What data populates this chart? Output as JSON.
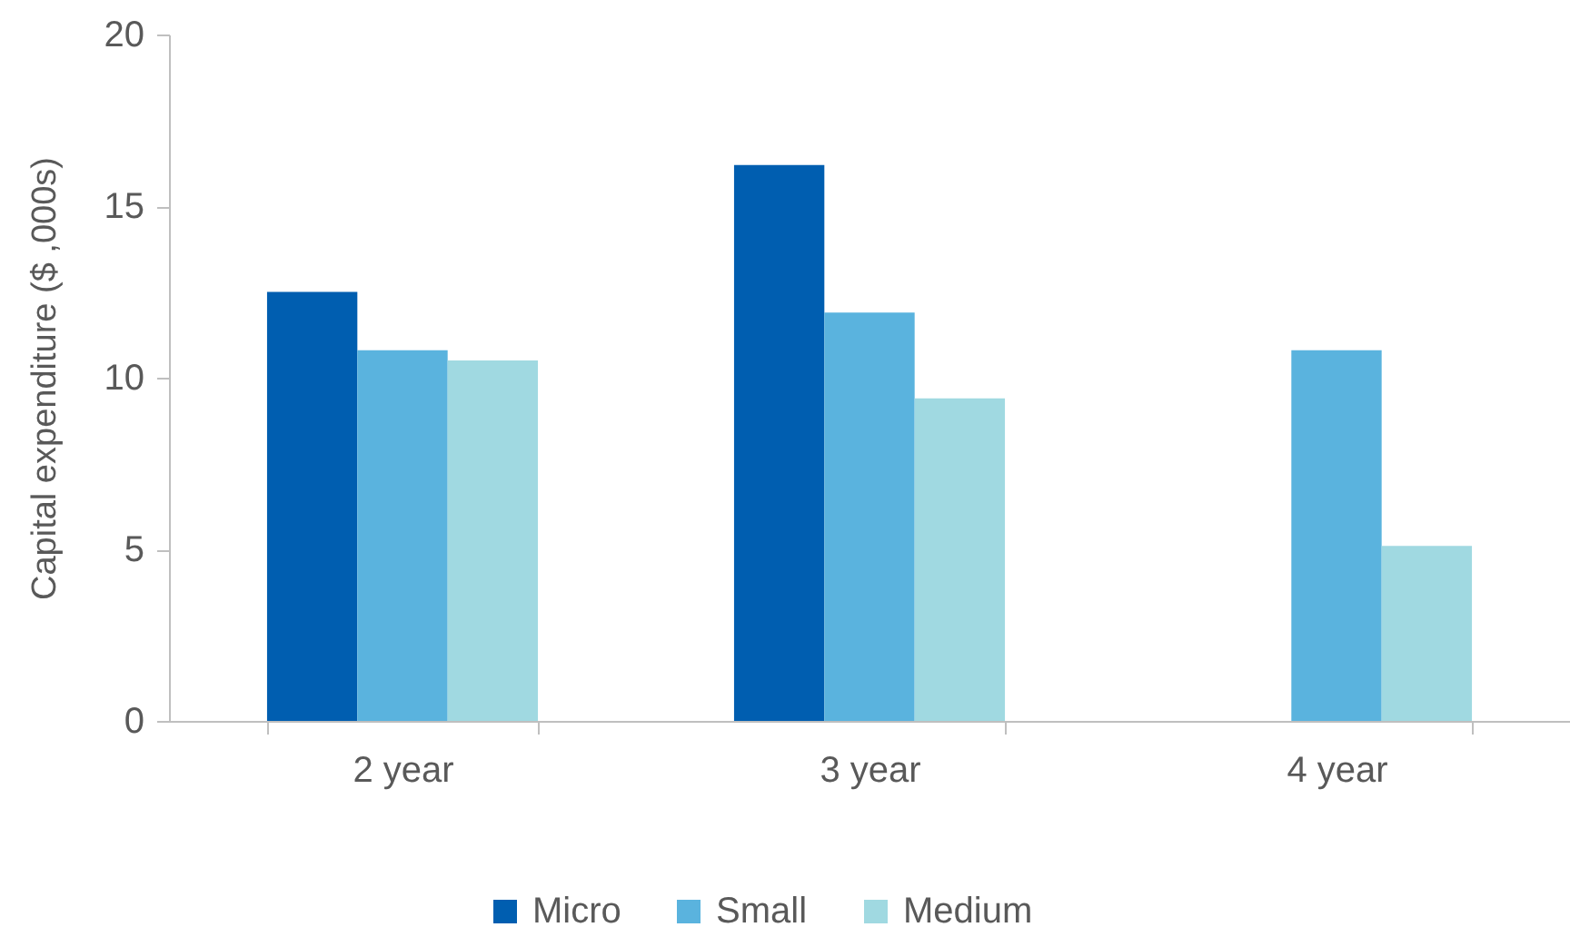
{
  "chart_data": {
    "type": "bar",
    "ylabel": "Capital expenditure ($ ,000s)",
    "categories": [
      "2 year",
      "3 year",
      "4 year"
    ],
    "series": [
      {
        "name": "Micro",
        "color": "#005eb0",
        "values": [
          12.5,
          16.2,
          null
        ]
      },
      {
        "name": "Small",
        "color": "#5ab3de",
        "values": [
          10.8,
          11.9,
          10.8
        ]
      },
      {
        "name": "Medium",
        "color": "#a0d9e1",
        "values": [
          10.5,
          9.4,
          5.1
        ]
      }
    ],
    "ylim": [
      0,
      20
    ],
    "yticks": [
      0,
      5,
      10,
      15,
      20
    ],
    "legend": "bottom"
  }
}
